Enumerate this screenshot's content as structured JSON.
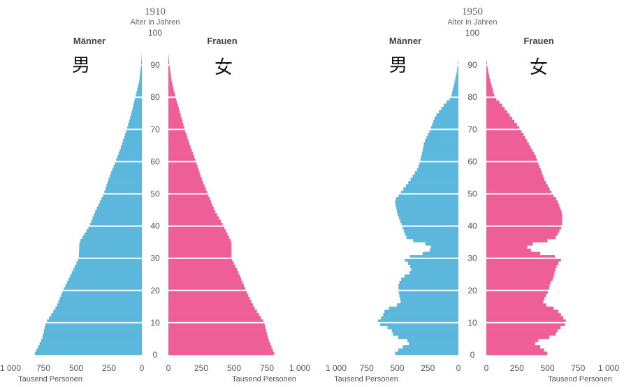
{
  "chart_data": [
    {
      "type": "bar",
      "orientation": "horizontal-pyramid",
      "year": "1910",
      "age_axis_title": "Alter in Jahren",
      "age_ticks": [
        0,
        10,
        20,
        30,
        40,
        50,
        60,
        70,
        80,
        90,
        100
      ],
      "x_ticks_left": [
        "1 000",
        "750",
        "500",
        "250",
        "0"
      ],
      "x_ticks_right": [
        "0",
        "250",
        "500",
        "750",
        "1 000"
      ],
      "x_unit_label": "Tausend Personen",
      "xlim": [
        0,
        1000
      ],
      "left_label": "Männer",
      "right_label": "Frauen",
      "left_cjk": "男",
      "right_cjk": "女",
      "colors": {
        "male": "#5bb8dc",
        "female": "#ee5f97",
        "separator": "#ffffff"
      },
      "series": [
        {
          "name": "Männer",
          "age_points": [
            [
              0,
              820
            ],
            [
              5,
              760
            ],
            [
              10,
              730
            ],
            [
              15,
              650
            ],
            [
              20,
              600
            ],
            [
              25,
              540
            ],
            [
              30,
              480
            ],
            [
              35,
              475
            ],
            [
              40,
              400
            ],
            [
              45,
              350
            ],
            [
              50,
              290
            ],
            [
              55,
              250
            ],
            [
              60,
              200
            ],
            [
              65,
              155
            ],
            [
              70,
              115
            ],
            [
              75,
              80
            ],
            [
              80,
              50
            ],
            [
              85,
              20
            ],
            [
              90,
              6
            ],
            [
              94,
              0
            ]
          ]
        },
        {
          "name": "Frauen",
          "age_points": [
            [
              0,
              810
            ],
            [
              5,
              760
            ],
            [
              10,
              730
            ],
            [
              15,
              650
            ],
            [
              20,
              590
            ],
            [
              25,
              540
            ],
            [
              30,
              480
            ],
            [
              35,
              480
            ],
            [
              40,
              420
            ],
            [
              45,
              350
            ],
            [
              50,
              300
            ],
            [
              55,
              250
            ],
            [
              60,
              210
            ],
            [
              65,
              165
            ],
            [
              70,
              125
            ],
            [
              75,
              90
            ],
            [
              80,
              55
            ],
            [
              85,
              25
            ],
            [
              90,
              8
            ],
            [
              94,
              0
            ]
          ]
        }
      ]
    },
    {
      "type": "bar",
      "orientation": "horizontal-pyramid",
      "year": "1950",
      "age_axis_title": "Alter in Jahren",
      "age_ticks": [
        0,
        10,
        20,
        30,
        40,
        50,
        60,
        70,
        80,
        90,
        100
      ],
      "x_ticks_left": [
        "1 000",
        "750",
        "500",
        "250",
        "0"
      ],
      "x_ticks_right": [
        "0",
        "250",
        "500",
        "750",
        "1 000"
      ],
      "x_unit_label": "Tausend Personen",
      "xlim": [
        0,
        1000
      ],
      "left_label": "Männer",
      "right_label": "Frauen",
      "left_cjk": "男",
      "right_cjk": "女",
      "colors": {
        "male": "#5bb8dc",
        "female": "#ee5f97",
        "separator": "#ffffff"
      },
      "series": [
        {
          "name": "Männer",
          "age_points": [
            [
              0,
              530
            ],
            [
              2,
              480
            ],
            [
              4,
              380
            ],
            [
              6,
              530
            ],
            [
              8,
              550
            ],
            [
              10,
              670
            ],
            [
              12,
              620
            ],
            [
              14,
              600
            ],
            [
              16,
              470
            ],
            [
              18,
              480
            ],
            [
              20,
              490
            ],
            [
              22,
              490
            ],
            [
              24,
              460
            ],
            [
              26,
              380
            ],
            [
              28,
              400
            ],
            [
              30,
              450
            ],
            [
              32,
              240
            ],
            [
              34,
              220
            ],
            [
              36,
              420
            ],
            [
              40,
              460
            ],
            [
              44,
              500
            ],
            [
              48,
              520
            ],
            [
              50,
              480
            ],
            [
              54,
              400
            ],
            [
              58,
              330
            ],
            [
              62,
              300
            ],
            [
              66,
              280
            ],
            [
              70,
              230
            ],
            [
              74,
              190
            ],
            [
              78,
              110
            ],
            [
              80,
              60
            ],
            [
              84,
              35
            ],
            [
              88,
              12
            ],
            [
              92,
              0
            ]
          ]
        },
        {
          "name": "Frauen",
          "age_points": [
            [
              0,
              510
            ],
            [
              2,
              460
            ],
            [
              4,
              380
            ],
            [
              6,
              560
            ],
            [
              8,
              590
            ],
            [
              10,
              660
            ],
            [
              12,
              620
            ],
            [
              14,
              580
            ],
            [
              16,
              460
            ],
            [
              18,
              480
            ],
            [
              20,
              510
            ],
            [
              22,
              520
            ],
            [
              24,
              550
            ],
            [
              26,
              560
            ],
            [
              28,
              580
            ],
            [
              30,
              620
            ],
            [
              32,
              380
            ],
            [
              34,
              320
            ],
            [
              36,
              560
            ],
            [
              40,
              620
            ],
            [
              44,
              620
            ],
            [
              48,
              580
            ],
            [
              50,
              540
            ],
            [
              54,
              480
            ],
            [
              58,
              440
            ],
            [
              62,
              400
            ],
            [
              66,
              340
            ],
            [
              70,
              280
            ],
            [
              74,
              200
            ],
            [
              78,
              120
            ],
            [
              80,
              70
            ],
            [
              84,
              40
            ],
            [
              88,
              15
            ],
            [
              92,
              0
            ]
          ]
        }
      ]
    }
  ]
}
